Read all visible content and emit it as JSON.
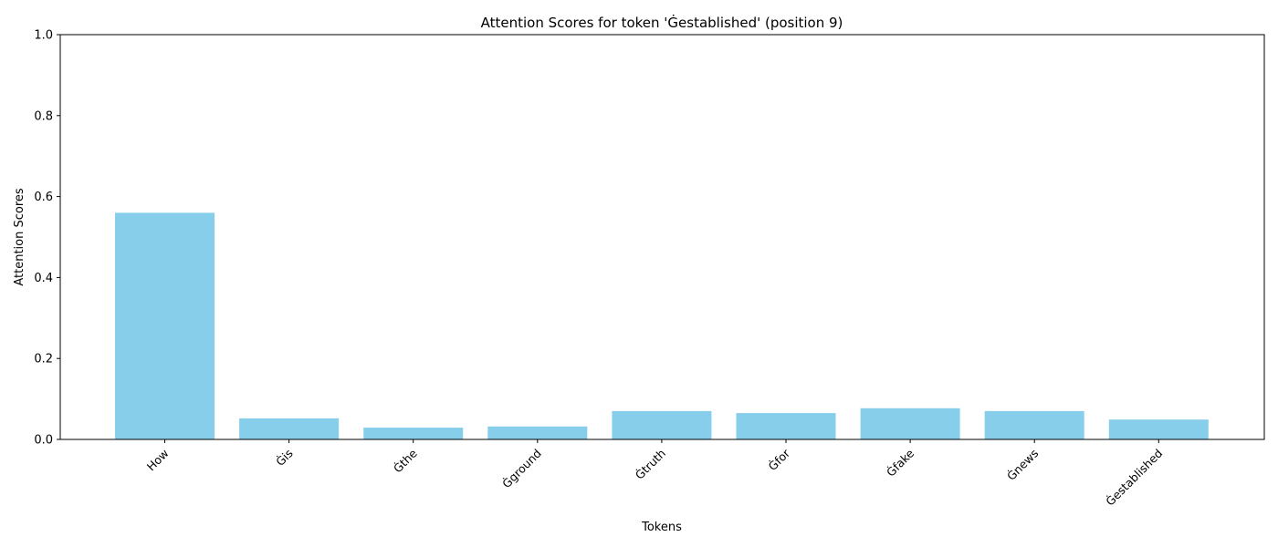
{
  "chart_data": {
    "type": "bar",
    "title": "Attention Scores for token 'Ġestablished' (position 9)",
    "xlabel": "Tokens",
    "ylabel": "Attention Scores",
    "categories": [
      "How",
      "Ġis",
      "Ġthe",
      "Ġground",
      "Ġtruth",
      "Ġfor",
      "Ġfake",
      "Ġnews",
      "Ġestablished"
    ],
    "values": [
      0.56,
      0.052,
      0.029,
      0.032,
      0.07,
      0.065,
      0.077,
      0.07,
      0.049
    ],
    "ylim": [
      0,
      1.0
    ],
    "yticks": [
      "0.0",
      "0.2",
      "0.4",
      "0.6",
      "0.8",
      "1.0"
    ],
    "bar_color": "#87CEEB",
    "grid": false,
    "legend": false
  }
}
